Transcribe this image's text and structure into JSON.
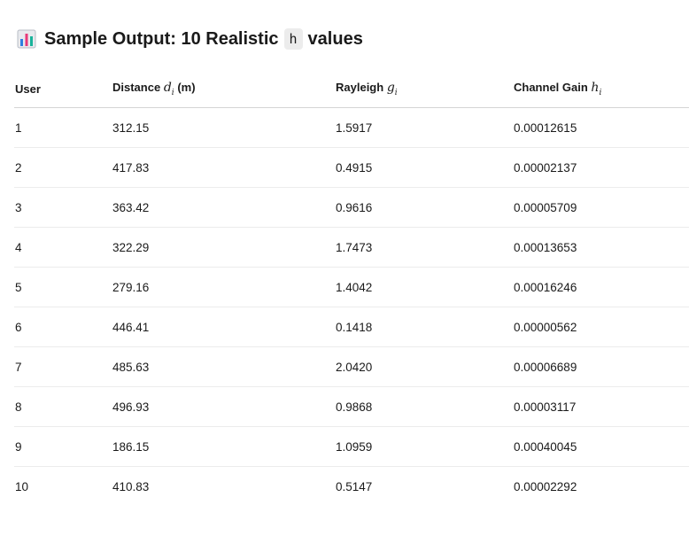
{
  "heading": {
    "icon": "bar-chart-icon",
    "prefix": "Sample Output: 10 Realistic",
    "code": "h",
    "suffix": "values"
  },
  "table": {
    "headers": {
      "user": "User",
      "distance_label": "Distance",
      "distance_var": "d",
      "distance_sub": "i",
      "distance_unit": "(m)",
      "rayleigh_label": "Rayleigh",
      "rayleigh_var": "g",
      "rayleigh_sub": "i",
      "gain_label": "Channel Gain",
      "gain_var": "h",
      "gain_sub": "i"
    },
    "rows": [
      {
        "user": "1",
        "distance": "312.15",
        "rayleigh": "1.5917",
        "gain": "0.00012615"
      },
      {
        "user": "2",
        "distance": "417.83",
        "rayleigh": "0.4915",
        "gain": "0.00002137"
      },
      {
        "user": "3",
        "distance": "363.42",
        "rayleigh": "0.9616",
        "gain": "0.00005709"
      },
      {
        "user": "4",
        "distance": "322.29",
        "rayleigh": "1.7473",
        "gain": "0.00013653"
      },
      {
        "user": "5",
        "distance": "279.16",
        "rayleigh": "1.4042",
        "gain": "0.00016246"
      },
      {
        "user": "6",
        "distance": "446.41",
        "rayleigh": "0.1418",
        "gain": "0.00000562"
      },
      {
        "user": "7",
        "distance": "485.63",
        "rayleigh": "2.0420",
        "gain": "0.00006689"
      },
      {
        "user": "8",
        "distance": "496.93",
        "rayleigh": "0.9868",
        "gain": "0.00003117"
      },
      {
        "user": "9",
        "distance": "186.15",
        "rayleigh": "1.0959",
        "gain": "0.00040045"
      },
      {
        "user": "10",
        "distance": "410.83",
        "rayleigh": "0.5147",
        "gain": "0.00002292"
      }
    ]
  }
}
